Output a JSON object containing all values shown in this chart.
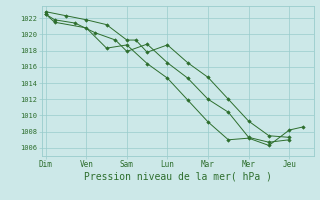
{
  "background_color": "#cce8e8",
  "grid_color": "#99cccc",
  "line_color": "#2d6e2d",
  "marker_color": "#2d6e2d",
  "xlabel": "Pression niveau de la mer( hPa )",
  "xlabel_fontsize": 7.0,
  "ytick_labels": [
    1006,
    1008,
    1010,
    1012,
    1014,
    1016,
    1018,
    1020,
    1022
  ],
  "ylim": [
    1005.0,
    1023.5
  ],
  "xlim": [
    -0.1,
    6.6
  ],
  "xtick_labels": [
    "Dim",
    "Ven",
    "Sam",
    "Lun",
    "Mar",
    "Mer",
    "Jeu"
  ],
  "xtick_positions": [
    0,
    1,
    2,
    3,
    4,
    5,
    6
  ],
  "series": [
    [
      1022.5,
      1021.5,
      1020.8,
      1018.3,
      1018.7,
      1016.4,
      1014.6,
      1011.9,
      1009.2,
      1007.0,
      1007.2,
      1006.3,
      1008.2,
      1008.6
    ],
    [
      1022.5,
      1021.8,
      1021.4,
      1020.2,
      1019.3,
      1017.9,
      1018.8,
      1016.5,
      1014.6,
      1012.0,
      1010.4,
      1007.3,
      1006.7,
      1007.0
    ],
    [
      1022.8,
      1022.3,
      1021.8,
      1021.2,
      1019.3,
      1019.3,
      1017.8,
      1018.7,
      1016.5,
      1014.7,
      1012.0,
      1009.3,
      1007.5,
      1007.3
    ]
  ],
  "series_x": [
    [
      0,
      0.22,
      1.0,
      1.5,
      2.0,
      2.5,
      3.0,
      3.5,
      4.0,
      4.5,
      5.0,
      5.5,
      6.0,
      6.35
    ],
    [
      0,
      0.22,
      0.72,
      1.22,
      1.72,
      2.0,
      2.5,
      3.0,
      3.5,
      4.0,
      4.5,
      5.0,
      5.5,
      6.0
    ],
    [
      0,
      0.5,
      1.0,
      1.5,
      2.0,
      2.22,
      2.5,
      3.0,
      3.5,
      4.0,
      4.5,
      5.0,
      5.5,
      6.0
    ]
  ]
}
